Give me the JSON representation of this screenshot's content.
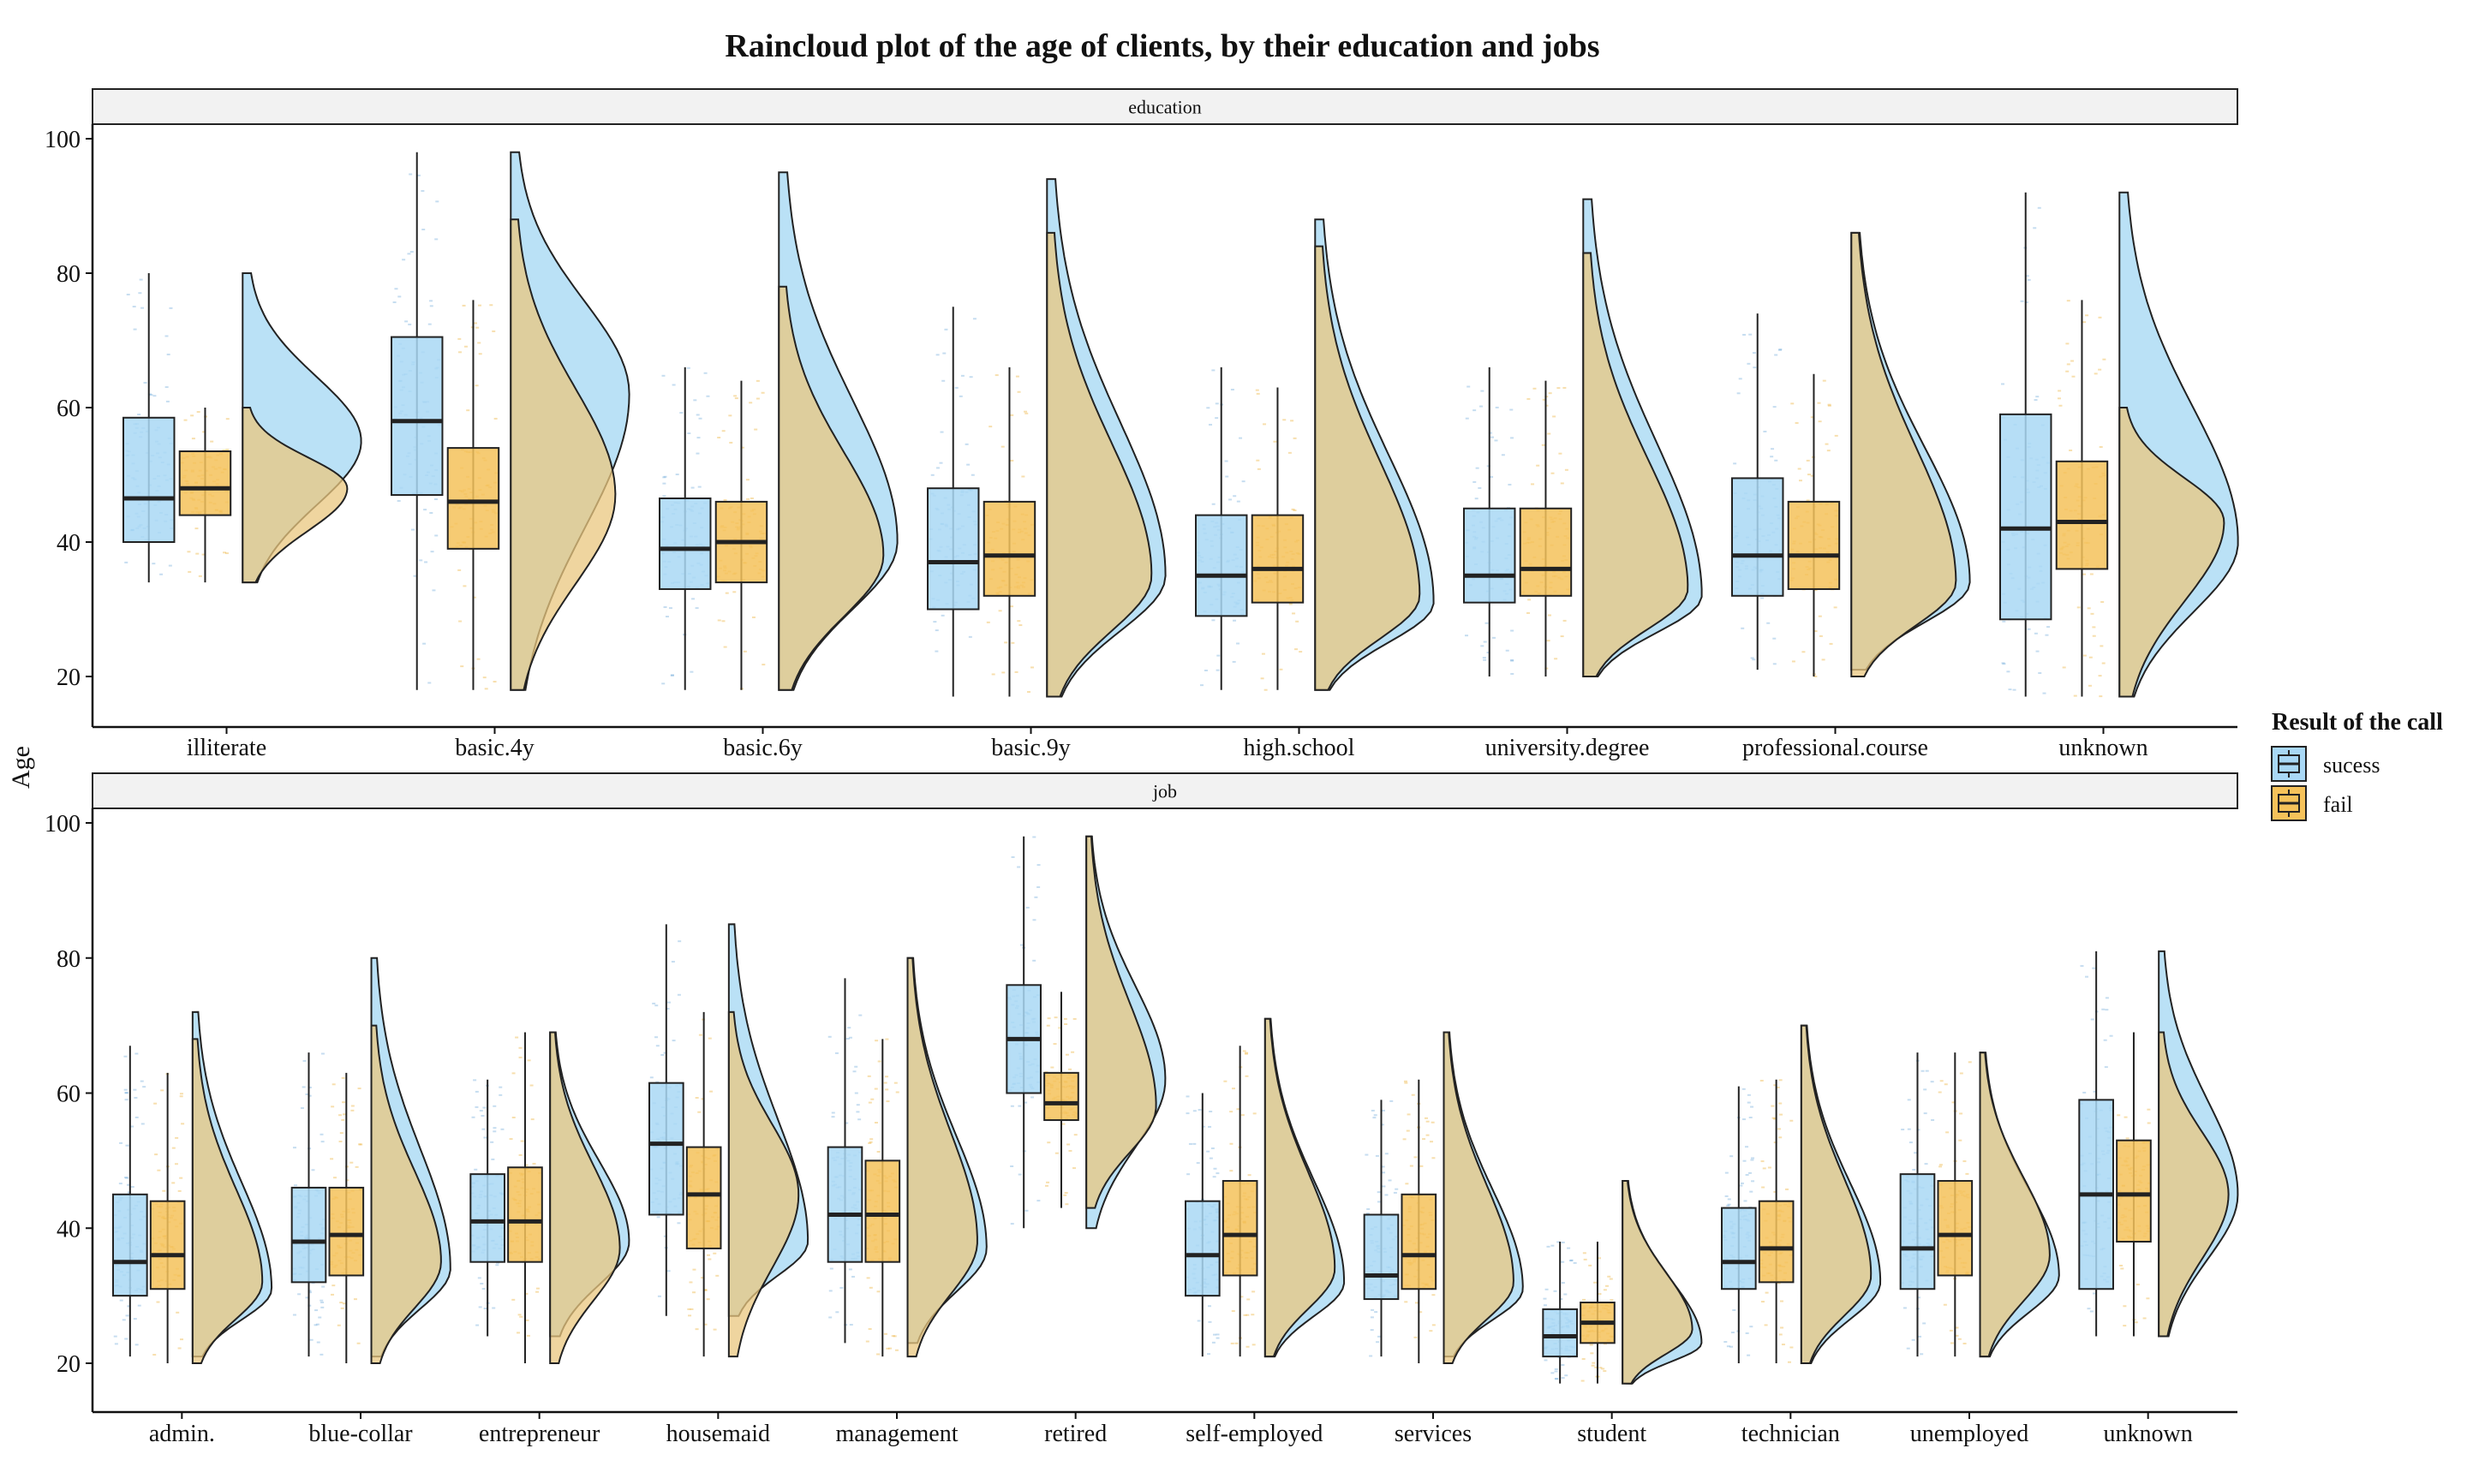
{
  "chart_data": {
    "type": "raincloud",
    "title": "Raincloud plot of the age of clients, by their education and jobs",
    "ylabel": "Age",
    "ylim": [
      13,
      101
    ],
    "yticks": [
      20,
      40,
      60,
      80,
      100
    ],
    "legend": {
      "title": "Result of the call",
      "placement": "right",
      "entries": [
        {
          "key": "success",
          "label": "sucess"
        },
        {
          "key": "fail",
          "label": "fail"
        }
      ]
    },
    "colors": {
      "success": "#a9d8f5",
      "fail": "#f5c25a",
      "success_points": "#5b9ed4",
      "fail_points": "#e8a317",
      "success_cloud": "#b3def5",
      "fail_cloud": "#e9c77f",
      "overlap": "#cbc28f",
      "strip_bg": "#f2f2f2",
      "outline": "#333333"
    },
    "panels": [
      {
        "strip": "education",
        "categories": [
          {
            "label": "illiterate",
            "success": {
              "min": 34,
              "q1": 40,
              "median": 46.5,
              "q3": 58.5,
              "max": 80,
              "dens_max": 80,
              "dens_peak": 55
            },
            "fail": {
              "min": 34,
              "q1": 44,
              "median": 48,
              "q3": 53.5,
              "max": 60,
              "dens_max": 60,
              "dens_peak": 48
            }
          },
          {
            "label": "basic.4y",
            "success": {
              "min": 18,
              "q1": 47,
              "median": 58,
              "q3": 70.5,
              "max": 98,
              "dens_max": 98,
              "dens_peak": 62
            },
            "fail": {
              "min": 18,
              "q1": 39,
              "median": 46,
              "q3": 54,
              "max": 76,
              "dens_max": 88,
              "dens_peak": 47
            }
          },
          {
            "label": "basic.6y",
            "success": {
              "min": 18,
              "q1": 33,
              "median": 39,
              "q3": 46.5,
              "max": 66,
              "dens_max": 95,
              "dens_peak": 40
            },
            "fail": {
              "min": 18,
              "q1": 34,
              "median": 40,
              "q3": 46,
              "max": 64,
              "dens_max": 78,
              "dens_peak": 38
            }
          },
          {
            "label": "basic.9y",
            "success": {
              "min": 17,
              "q1": 30,
              "median": 37,
              "q3": 48,
              "max": 75,
              "dens_max": 94,
              "dens_peak": 35
            },
            "fail": {
              "min": 17,
              "q1": 32,
              "median": 38,
              "q3": 46,
              "max": 66,
              "dens_max": 86,
              "dens_peak": 35
            }
          },
          {
            "label": "high.school",
            "success": {
              "min": 18,
              "q1": 29,
              "median": 35,
              "q3": 44,
              "max": 66,
              "dens_max": 88,
              "dens_peak": 31
            },
            "fail": {
              "min": 18,
              "q1": 31,
              "median": 36,
              "q3": 44,
              "max": 63,
              "dens_max": 84,
              "dens_peak": 32
            }
          },
          {
            "label": "university.degree",
            "success": {
              "min": 20,
              "q1": 31,
              "median": 35,
              "q3": 45,
              "max": 66,
              "dens_max": 91,
              "dens_peak": 32
            },
            "fail": {
              "min": 20,
              "q1": 32,
              "median": 36,
              "q3": 45,
              "max": 64,
              "dens_max": 83,
              "dens_peak": 33
            }
          },
          {
            "label": "professional.course",
            "success": {
              "min": 21,
              "q1": 32,
              "median": 38,
              "q3": 49.5,
              "max": 74,
              "dens_max": 86,
              "dens_peak": 34
            },
            "fail": {
              "min": 20,
              "q1": 33,
              "median": 38,
              "q3": 46,
              "max": 65,
              "dens_max": 86,
              "dens_peak": 34
            }
          },
          {
            "label": "unknown",
            "success": {
              "min": 17,
              "q1": 28.5,
              "median": 42,
              "q3": 59,
              "max": 92,
              "dens_max": 92,
              "dens_peak": 40
            },
            "fail": {
              "min": 17,
              "q1": 36,
              "median": 43,
              "q3": 52,
              "max": 76,
              "dens_max": 60,
              "dens_peak": 43
            }
          }
        ]
      },
      {
        "strip": "job",
        "categories": [
          {
            "label": "admin.",
            "success": {
              "min": 21,
              "q1": 30,
              "median": 35,
              "q3": 45,
              "max": 67,
              "dens_max": 72,
              "dens_peak": 31
            },
            "fail": {
              "min": 20,
              "q1": 31,
              "median": 36,
              "q3": 44,
              "max": 63,
              "dens_max": 68,
              "dens_peak": 32
            }
          },
          {
            "label": "blue-collar",
            "success": {
              "min": 21,
              "q1": 32,
              "median": 38,
              "q3": 46,
              "max": 66,
              "dens_max": 80,
              "dens_peak": 34
            },
            "fail": {
              "min": 20,
              "q1": 33,
              "median": 39,
              "q3": 46,
              "max": 63,
              "dens_max": 70,
              "dens_peak": 35
            }
          },
          {
            "label": "entrepreneur",
            "success": {
              "min": 24,
              "q1": 35,
              "median": 41,
              "q3": 48,
              "max": 62,
              "dens_max": 69,
              "dens_peak": 38
            },
            "fail": {
              "min": 20,
              "q1": 35,
              "median": 41,
              "q3": 49,
              "max": 69,
              "dens_max": 69,
              "dens_peak": 37
            }
          },
          {
            "label": "housemaid",
            "success": {
              "min": 27,
              "q1": 42,
              "median": 52.5,
              "q3": 61.5,
              "max": 85,
              "dens_max": 85,
              "dens_peak": 38
            },
            "fail": {
              "min": 21,
              "q1": 37,
              "median": 45,
              "q3": 52,
              "max": 72,
              "dens_max": 72,
              "dens_peak": 45
            }
          },
          {
            "label": "management",
            "success": {
              "min": 23,
              "q1": 35,
              "median": 42,
              "q3": 52,
              "max": 77,
              "dens_max": 80,
              "dens_peak": 37
            },
            "fail": {
              "min": 21,
              "q1": 35,
              "median": 42,
              "q3": 50,
              "max": 68,
              "dens_max": 80,
              "dens_peak": 38
            }
          },
          {
            "label": "retired",
            "success": {
              "min": 40,
              "q1": 60,
              "median": 68,
              "q3": 76,
              "max": 98,
              "dens_max": 98,
              "dens_peak": 62
            },
            "fail": {
              "min": 43,
              "q1": 56,
              "median": 58.5,
              "q3": 63,
              "max": 75,
              "dens_max": 98,
              "dens_peak": 58
            }
          },
          {
            "label": "self-employed",
            "success": {
              "min": 21,
              "q1": 30,
              "median": 36,
              "q3": 44,
              "max": 60,
              "dens_max": 71,
              "dens_peak": 32
            },
            "fail": {
              "min": 21,
              "q1": 33,
              "median": 39,
              "q3": 47,
              "max": 67,
              "dens_max": 71,
              "dens_peak": 34
            }
          },
          {
            "label": "services",
            "success": {
              "min": 21,
              "q1": 29.5,
              "median": 33,
              "q3": 42,
              "max": 59,
              "dens_max": 69,
              "dens_peak": 31
            },
            "fail": {
              "min": 20,
              "q1": 31,
              "median": 36,
              "q3": 45,
              "max": 62,
              "dens_max": 69,
              "dens_peak": 32
            }
          },
          {
            "label": "student",
            "success": {
              "min": 17,
              "q1": 21,
              "median": 24,
              "q3": 28,
              "max": 38,
              "dens_max": 47,
              "dens_peak": 23
            },
            "fail": {
              "min": 17,
              "q1": 23,
              "median": 26,
              "q3": 29,
              "max": 38,
              "dens_max": 47,
              "dens_peak": 25
            }
          },
          {
            "label": "technician",
            "success": {
              "min": 20,
              "q1": 31,
              "median": 35,
              "q3": 43,
              "max": 61,
              "dens_max": 70,
              "dens_peak": 32
            },
            "fail": {
              "min": 20,
              "q1": 32,
              "median": 37,
              "q3": 44,
              "max": 62,
              "dens_max": 70,
              "dens_peak": 33
            }
          },
          {
            "label": "unemployed",
            "success": {
              "min": 21,
              "q1": 31,
              "median": 37,
              "q3": 48,
              "max": 66,
              "dens_max": 66,
              "dens_peak": 33
            },
            "fail": {
              "min": 21,
              "q1": 33,
              "median": 39,
              "q3": 47,
              "max": 66,
              "dens_max": 66,
              "dens_peak": 36
            }
          },
          {
            "label": "unknown",
            "success": {
              "min": 24,
              "q1": 31,
              "median": 45,
              "q3": 59,
              "max": 81,
              "dens_max": 81,
              "dens_peak": 45
            },
            "fail": {
              "min": 24,
              "q1": 38,
              "median": 45,
              "q3": 53,
              "max": 69,
              "dens_max": 69,
              "dens_peak": 45
            }
          }
        ]
      }
    ]
  }
}
